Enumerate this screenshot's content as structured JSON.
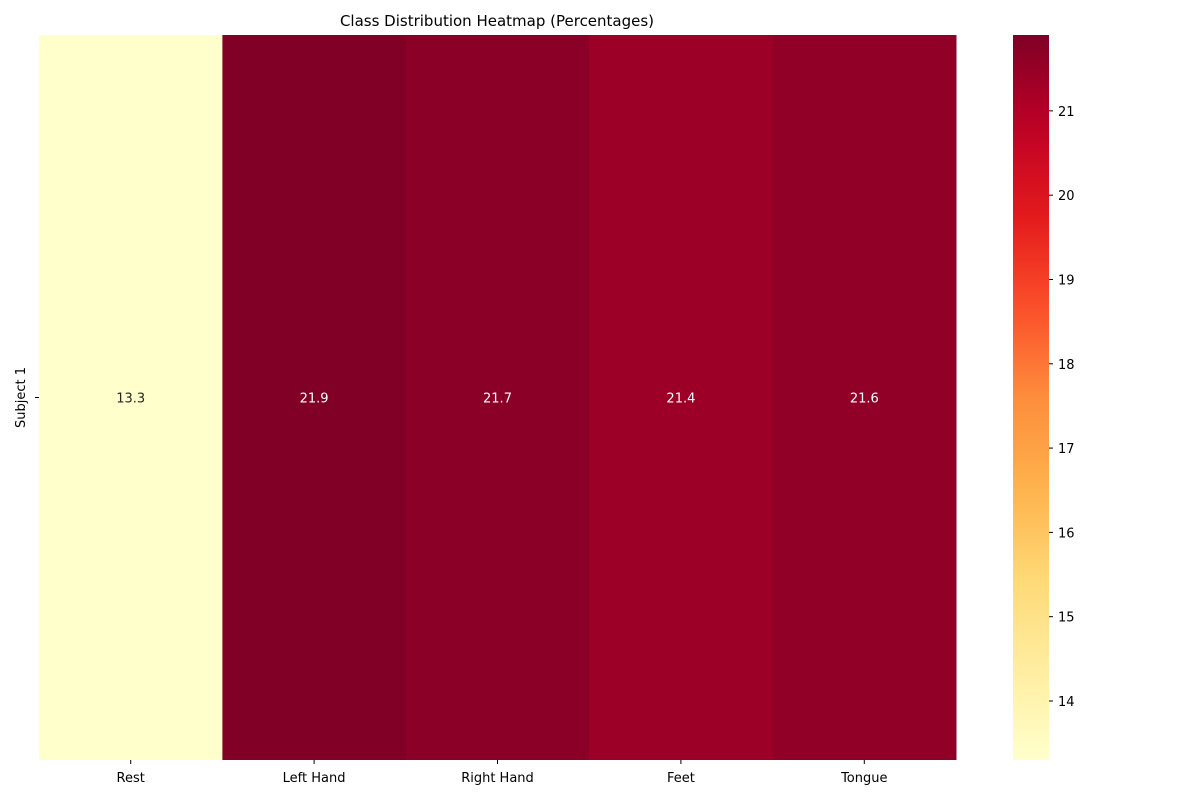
{
  "chart_data": {
    "type": "heatmap",
    "title": "Class Distribution Heatmap (Percentages)",
    "xlabel": "",
    "ylabel": "",
    "columns": [
      "Rest",
      "Left Hand",
      "Right Hand",
      "Feet",
      "Tongue"
    ],
    "rows": [
      "Subject 1"
    ],
    "values": [
      [
        13.3,
        21.9,
        21.7,
        21.4,
        21.6
      ]
    ],
    "value_labels": [
      [
        "13.3",
        "21.9",
        "21.7",
        "21.4",
        "21.6"
      ]
    ],
    "colormap": "YlOrRd",
    "colorbar": {
      "range": [
        13.3,
        21.9
      ],
      "ticks": [
        14,
        15,
        16,
        17,
        18,
        19,
        20,
        21
      ]
    },
    "grid": false,
    "legend": "colorbar-right"
  }
}
